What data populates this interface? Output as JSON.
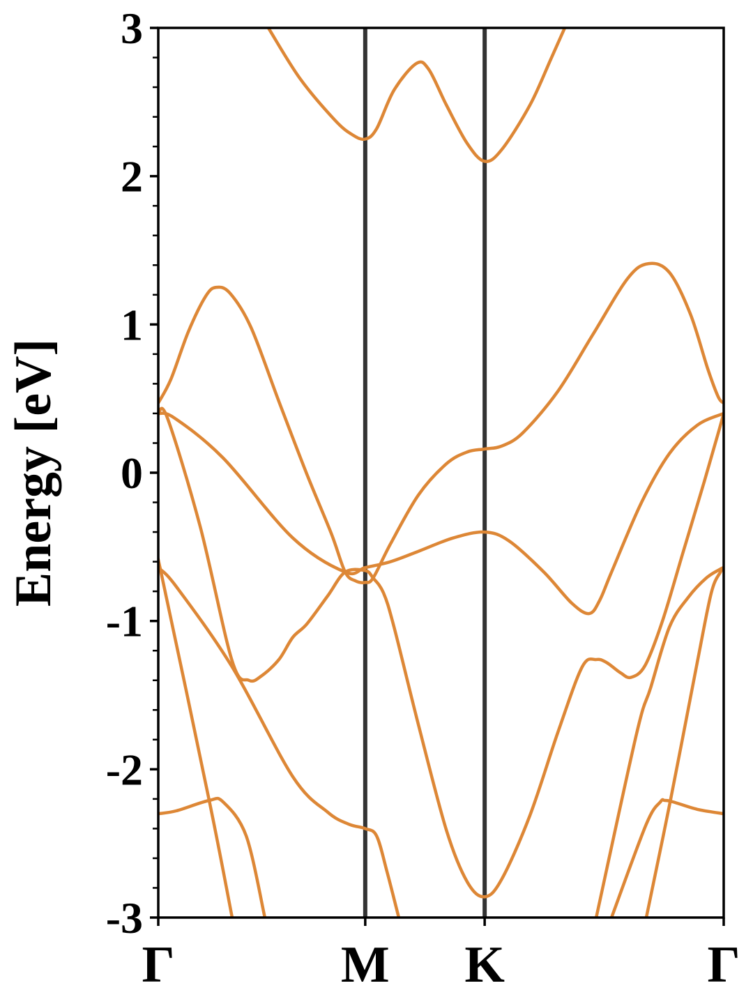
{
  "chart_data": {
    "type": "line",
    "title": "",
    "xlabel": "",
    "ylabel": "Energy [eV]",
    "ylim": [
      -3,
      3
    ],
    "yticks": [
      -3,
      -2,
      -1,
      0,
      1,
      2,
      3
    ],
    "ytick_labels": [
      "-3",
      "-2",
      "-1",
      "0",
      "1",
      "2",
      "3"
    ],
    "y_minor_step": 0.2,
    "xlim": [
      0,
      2.732
    ],
    "high_symmetry_points": [
      {
        "label": "Γ",
        "k": 0
      },
      {
        "label": "M",
        "k": 1.0
      },
      {
        "label": "K",
        "k": 1.577
      },
      {
        "label": "Γ",
        "k": 2.732
      }
    ],
    "grid": false,
    "legend": "none",
    "line_color": "#dd8736",
    "vline_color": "#333333",
    "series": [
      {
        "points": [
          [
            0.532,
            3.0
          ],
          [
            0.684,
            2.66
          ],
          [
            0.852,
            2.38
          ],
          [
            0.937,
            2.28
          ],
          [
            1,
            2.25
          ],
          [
            1.055,
            2.32
          ],
          [
            1.139,
            2.58
          ],
          [
            1.247,
            2.76
          ],
          [
            1.307,
            2.72
          ],
          [
            1.392,
            2.48
          ],
          [
            1.493,
            2.22
          ],
          [
            1.577,
            2.1
          ],
          [
            1.66,
            2.18
          ],
          [
            1.796,
            2.48
          ],
          [
            1.897,
            2.79
          ],
          [
            1.964,
            3.0
          ]
        ]
      },
      {
        "points": [
          [
            0,
            0.47
          ],
          [
            0.061,
            0.63
          ],
          [
            0.145,
            0.95
          ],
          [
            0.229,
            1.19
          ],
          [
            0.28,
            1.25
          ],
          [
            0.347,
            1.21
          ],
          [
            0.448,
            0.98
          ],
          [
            0.583,
            0.48
          ],
          [
            0.718,
            -0.01
          ],
          [
            0.836,
            -0.41
          ],
          [
            0.903,
            -0.67
          ],
          [
            0.954,
            -0.73
          ],
          [
            1,
            -0.74
          ],
          [
            1.038,
            -0.71
          ],
          [
            1.122,
            -0.48
          ],
          [
            1.257,
            -0.15
          ],
          [
            1.392,
            0.06
          ],
          [
            1.493,
            0.14
          ],
          [
            1.577,
            0.16
          ],
          [
            1.66,
            0.18
          ],
          [
            1.762,
            0.27
          ],
          [
            1.931,
            0.55
          ],
          [
            2.099,
            0.93
          ],
          [
            2.268,
            1.31
          ],
          [
            2.369,
            1.41
          ],
          [
            2.47,
            1.35
          ],
          [
            2.571,
            1.07
          ],
          [
            2.655,
            0.7
          ],
          [
            2.706,
            0.51
          ],
          [
            2.732,
            0.47
          ]
        ]
      },
      {
        "points": [
          [
            0,
            0.4
          ],
          [
            0.077,
            0.37
          ],
          [
            0.313,
            0.1
          ],
          [
            0.65,
            -0.44
          ],
          [
            0.903,
            -0.67
          ],
          [
            1,
            -0.64
          ],
          [
            1.122,
            -0.6
          ],
          [
            1.257,
            -0.53
          ],
          [
            1.425,
            -0.44
          ],
          [
            1.577,
            -0.4
          ],
          [
            1.695,
            -0.46
          ],
          [
            1.863,
            -0.67
          ],
          [
            1.998,
            -0.88
          ],
          [
            2.082,
            -0.95
          ],
          [
            2.133,
            -0.86
          ],
          [
            2.19,
            -0.67
          ],
          [
            2.335,
            -0.2
          ],
          [
            2.47,
            0.13
          ],
          [
            2.604,
            0.32
          ],
          [
            2.732,
            0.4
          ]
        ]
      },
      {
        "points": [
          [
            0,
            0.4
          ],
          [
            0.044,
            0.37
          ],
          [
            0.202,
            -0.36
          ],
          [
            0.357,
            -1.27
          ],
          [
            0.438,
            -1.4
          ],
          [
            0.499,
            -1.37
          ],
          [
            0.583,
            -1.26
          ],
          [
            0.65,
            -1.11
          ],
          [
            0.718,
            -1.02
          ],
          [
            0.819,
            -0.83
          ],
          [
            0.903,
            -0.67
          ],
          [
            1,
            -0.66
          ],
          [
            1.038,
            -0.71
          ],
          [
            1.088,
            -0.81
          ],
          [
            1.139,
            -1.04
          ],
          [
            1.257,
            -1.7
          ],
          [
            1.392,
            -2.41
          ],
          [
            1.493,
            -2.76
          ],
          [
            1.577,
            -2.86
          ],
          [
            1.66,
            -2.74
          ],
          [
            1.796,
            -2.31
          ],
          [
            1.931,
            -1.75
          ],
          [
            2.048,
            -1.31
          ],
          [
            2.116,
            -1.26
          ],
          [
            2.166,
            -1.28
          ],
          [
            2.234,
            -1.35
          ],
          [
            2.284,
            -1.38
          ],
          [
            2.352,
            -1.3
          ],
          [
            2.436,
            -1.0
          ],
          [
            2.537,
            -0.53
          ],
          [
            2.638,
            -0.06
          ],
          [
            2.706,
            0.27
          ],
          [
            2.732,
            0.4
          ]
        ]
      },
      {
        "points": [
          [
            0,
            -0.64
          ],
          [
            0.01,
            -0.65
          ],
          [
            0.246,
            -2.21
          ],
          [
            0.357,
            -3.0
          ]
        ]
      },
      {
        "points": [
          [
            0,
            -0.64
          ],
          [
            0.088,
            -0.77
          ],
          [
            0.357,
            -1.31
          ],
          [
            0.65,
            -2.05
          ],
          [
            0.819,
            -2.29
          ],
          [
            0.92,
            -2.37
          ],
          [
            1,
            -2.4
          ],
          [
            1.055,
            -2.45
          ],
          [
            1.105,
            -2.69
          ],
          [
            1.162,
            -3.0
          ]
        ]
      },
      {
        "points": [
          [
            0,
            -2.3
          ],
          [
            0.088,
            -2.28
          ],
          [
            0.246,
            -2.21
          ],
          [
            0.313,
            -2.22
          ],
          [
            0.425,
            -2.45
          ],
          [
            0.515,
            -3.0
          ]
        ]
      },
      {
        "points": [
          [
            2.116,
            -3.0
          ],
          [
            2.311,
            -1.76
          ],
          [
            2.379,
            -1.45
          ],
          [
            2.47,
            -1.04
          ],
          [
            2.561,
            -0.84
          ],
          [
            2.648,
            -0.71
          ],
          [
            2.716,
            -0.65
          ],
          [
            2.732,
            -0.64
          ]
        ]
      },
      {
        "points": [
          [
            2.19,
            -3.0
          ],
          [
            2.358,
            -2.37
          ],
          [
            2.426,
            -2.22
          ],
          [
            2.446,
            -2.21
          ],
          [
            2.487,
            -2.22
          ],
          [
            2.604,
            -2.27
          ],
          [
            2.732,
            -2.3
          ]
        ]
      },
      {
        "points": [
          [
            2.358,
            -3.0
          ],
          [
            2.476,
            -2.2
          ],
          [
            2.604,
            -1.28
          ],
          [
            2.672,
            -0.81
          ],
          [
            2.716,
            -0.67
          ],
          [
            2.732,
            -0.64
          ]
        ]
      }
    ]
  }
}
